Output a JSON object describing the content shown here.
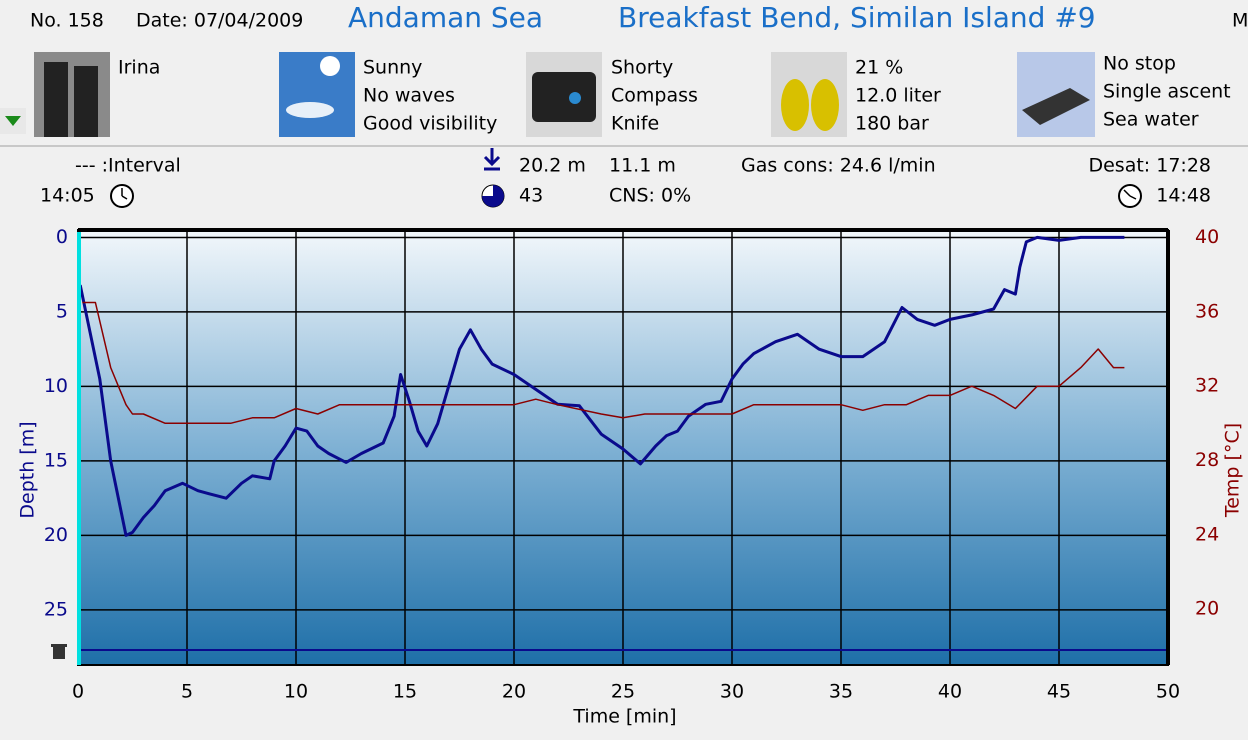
{
  "header": {
    "number": "No. 158",
    "date": "Date: 07/04/2009",
    "location": "Andaman Sea",
    "site": "Breakfast Bend, Similan Island #9",
    "cut": "M"
  },
  "info": [
    {
      "lines": [
        "Irina"
      ]
    },
    {
      "lines": [
        "Sunny",
        "No waves",
        "Good visibility"
      ]
    },
    {
      "lines": [
        "Shorty",
        "Compass",
        "Knife"
      ]
    },
    {
      "lines": [
        "21 %",
        "12.0 liter",
        "180 bar"
      ]
    },
    {
      "lines": [
        "No stop",
        "Single ascent",
        "Sea water"
      ]
    }
  ],
  "stats": {
    "interval": "--- :Interval",
    "start": "14:05",
    "max_depth": "20.2 m",
    "duration": "43",
    "avg_depth": "11.1 m",
    "cns": "CNS:  0%",
    "gas": "Gas cons: 24.6 l/min",
    "desat": "Desat: 17:28",
    "end": "14:48"
  },
  "chart_data": {
    "type": "line",
    "xlabel": "Time [min]",
    "ylabel": "Depth [m]",
    "y2label": "Temp [°C]",
    "xlim": [
      0,
      50
    ],
    "xticks": [
      0,
      5,
      10,
      15,
      20,
      25,
      30,
      35,
      40,
      45,
      50
    ],
    "ylim": [
      -0.5,
      28.7
    ],
    "yticks": [
      0,
      5,
      10,
      15,
      20,
      25
    ],
    "y_inverted": true,
    "y2lim": [
      17.0,
      40.4
    ],
    "y2ticks": [
      40,
      36,
      32,
      28,
      24,
      20
    ],
    "grid": true,
    "series": [
      {
        "color": "#0a0a8c",
        "x": [
          0.1,
          1,
          1.5,
          2.2,
          2.5,
          3,
          3.5,
          4,
          4.8,
          5.5,
          6,
          6.8,
          7.5,
          8,
          8.8,
          9,
          9.5,
          10,
          10.5,
          11,
          11.5,
          12.3,
          13,
          14,
          14.5,
          14.8,
          15.2,
          15.6,
          16,
          16.5,
          17,
          17.5,
          18,
          18.5,
          19,
          20,
          21,
          22,
          23,
          24,
          25,
          25.8,
          26.5,
          27,
          27.5,
          28,
          28.8,
          29.5,
          30,
          30.5,
          31,
          32,
          33,
          34,
          35,
          36,
          37,
          37.8,
          38.5,
          39.3,
          40,
          41,
          42,
          42.5,
          43,
          43.2,
          43.5,
          44,
          45,
          46,
          48
        ],
        "values": [
          3.2,
          9.5,
          15,
          20,
          19.8,
          18.8,
          18,
          17,
          16.5,
          17,
          17.2,
          17.5,
          16.5,
          16,
          16.2,
          15,
          14,
          12.8,
          13,
          14,
          14.5,
          15.1,
          14.5,
          13.8,
          12,
          9.2,
          11,
          13,
          14,
          12.5,
          10,
          7.5,
          6.2,
          7.5,
          8.5,
          9.2,
          10.2,
          11.2,
          11.3,
          13.2,
          14.2,
          15.2,
          14,
          13.3,
          13,
          12,
          11.2,
          11,
          9.5,
          8.5,
          7.8,
          7,
          6.5,
          7.5,
          8,
          8,
          7,
          4.7,
          5.5,
          5.9,
          5.5,
          5.2,
          4.8,
          3.5,
          3.8,
          2.0,
          0.3,
          0,
          0.2,
          0,
          0
        ]
      },
      {
        "color": "#8b0000",
        "axis": "y2",
        "x": [
          0.2,
          0.8,
          1.5,
          2.2,
          2.5,
          3,
          4,
          5,
          7,
          8,
          9,
          10,
          11,
          12,
          13,
          14,
          16,
          17,
          20,
          21,
          22,
          24,
          25,
          26,
          28,
          30,
          31,
          35,
          36,
          37,
          38,
          39,
          40,
          41,
          42,
          43,
          44,
          45,
          46,
          46.8,
          47.5,
          48
        ],
        "values": [
          36.5,
          36.5,
          33,
          31,
          30.5,
          30.5,
          30,
          30,
          30,
          30.3,
          30.3,
          30.8,
          30.5,
          31,
          31,
          31,
          31,
          31,
          31,
          31.3,
          31,
          30.5,
          30.3,
          30.5,
          30.5,
          30.5,
          31,
          31,
          30.7,
          31,
          31,
          31.5,
          31.5,
          32,
          31.5,
          30.8,
          32,
          32,
          33,
          34,
          33,
          33
        ]
      }
    ]
  }
}
